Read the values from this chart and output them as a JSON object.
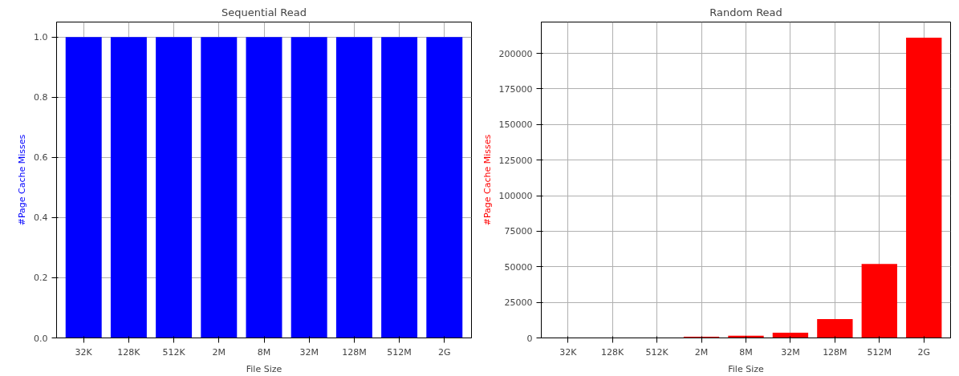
{
  "chart_data": [
    {
      "type": "bar",
      "title": "Sequential Read",
      "xlabel": "File Size",
      "ylabel": "#Page Cache Misses",
      "categories": [
        "32K",
        "128K",
        "512K",
        "2M",
        "8M",
        "32M",
        "128M",
        "512M",
        "2G"
      ],
      "values": [
        1,
        1,
        1,
        1,
        1,
        1,
        1,
        1,
        1
      ],
      "color": "#0000ff",
      "ylim": [
        0,
        1.05
      ],
      "yticks": [
        {
          "value": 0,
          "label": "0.0"
        },
        {
          "value": 0.2,
          "label": "0.2"
        },
        {
          "value": 0.4,
          "label": "0.4"
        },
        {
          "value": 0.6,
          "label": "0.6"
        },
        {
          "value": 0.8,
          "label": "0.8"
        },
        {
          "value": 1,
          "label": "1.0"
        }
      ],
      "grid": true
    },
    {
      "type": "bar",
      "title": "Random Read",
      "xlabel": "File Size",
      "ylabel": "#Page Cache Misses",
      "categories": [
        "32K",
        "128K",
        "512K",
        "2M",
        "8M",
        "32M",
        "128M",
        "512M",
        "2G"
      ],
      "values": [
        0,
        0,
        0,
        900,
        1500,
        3700,
        13300,
        52000,
        211000
      ],
      "color": "#ff0000",
      "ylim": [
        0,
        222000
      ],
      "yticks": [
        0,
        25000,
        50000,
        75000,
        100000,
        125000,
        150000,
        175000,
        200000
      ],
      "grid": true
    }
  ]
}
